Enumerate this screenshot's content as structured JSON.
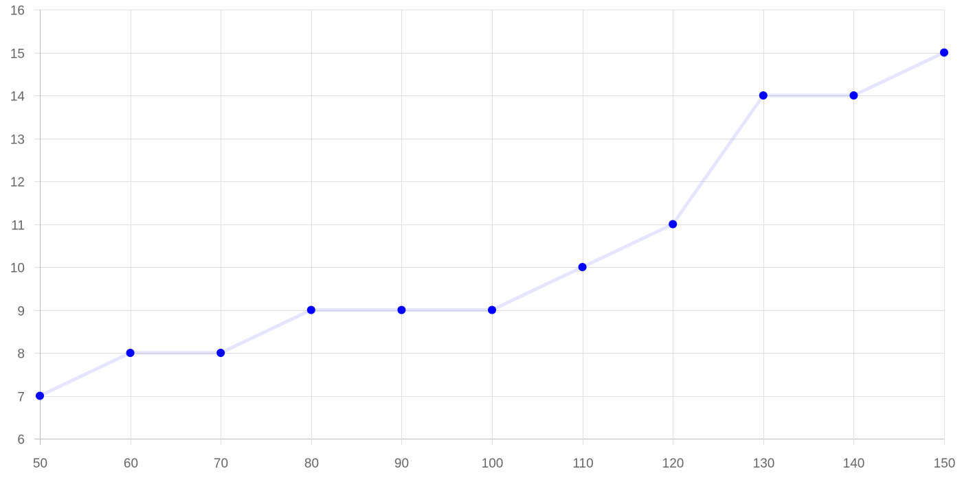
{
  "chart_data": {
    "type": "line",
    "x": [
      50,
      60,
      70,
      80,
      90,
      100,
      110,
      120,
      130,
      140,
      150
    ],
    "series": [
      {
        "values": [
          7,
          8,
          8,
          9,
          9,
          9,
          10,
          11,
          14,
          14,
          15
        ],
        "line_color": "rgba(0,0,255,0.1)",
        "point_color": "#0000ff"
      }
    ],
    "xlim": [
      50,
      150
    ],
    "ylim": [
      6,
      16
    ],
    "x_ticks": [
      "50",
      "60",
      "70",
      "80",
      "90",
      "100",
      "110",
      "120",
      "130",
      "140",
      "150"
    ],
    "y_ticks": [
      "6",
      "7",
      "8",
      "9",
      "10",
      "11",
      "12",
      "13",
      "14",
      "15",
      "16"
    ],
    "grid": true,
    "legend": "none"
  }
}
